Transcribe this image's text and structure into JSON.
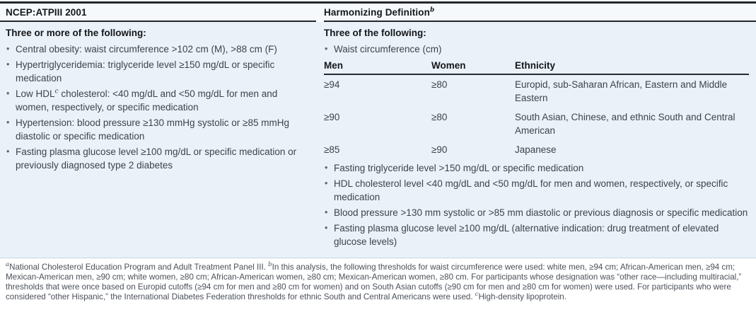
{
  "colors": {
    "rule_dark": "#23272f",
    "body_background": "#eaf1f8",
    "heading_text": "#14171b",
    "body_text": "#3e434a",
    "footnote_text": "#4a5058"
  },
  "bullet_glyph": "•",
  "table": {
    "left": {
      "header": "NCEP:ATPIII 2001",
      "intro": "Three or more of the following:",
      "bullets": [
        {
          "pre": "Central obesity: waist circumference >102 cm (M), >88 cm (F)",
          "sup": "",
          "post": ""
        },
        {
          "pre": "Hypertriglyceridemia: triglyceride level ≥150 mg/dL or specific medication",
          "sup": "",
          "post": ""
        },
        {
          "pre": "Low HDL",
          "sup": "c",
          "post": " cholesterol: <40 mg/dL and <50 mg/dL for men and women, respectively, or specific medication"
        },
        {
          "pre": "Hypertension: blood pressure ≥130 mmHg systolic or ≥85 mmHg diastolic or specific medication",
          "sup": "",
          "post": ""
        },
        {
          "pre": "Fasting plasma glucose level ≥100 mg/dL or specific medication or previously diagnosed type 2 diabetes",
          "sup": "",
          "post": ""
        }
      ]
    },
    "right": {
      "header": {
        "text": "Harmonizing Definition",
        "sup": "b"
      },
      "intro": "Three of the following:",
      "waist_bullet": "Waist circumference (cm)",
      "subtable": {
        "headers": [
          "Men",
          "Women",
          "Ethnicity"
        ],
        "rows": [
          [
            "≥94",
            "≥80",
            "Europid, sub-Saharan African, Eastern and Middle Eastern"
          ],
          [
            "≥90",
            "≥80",
            "South Asian, Chinese, and ethnic South and Central American"
          ],
          [
            "≥85",
            "≥90",
            "Japanese"
          ]
        ]
      },
      "bullets": [
        {
          "pre": "Fasting triglyceride level >150 mg/dL or specific medication",
          "sup": "",
          "post": ""
        },
        {
          "pre": "HDL cholesterol level <40 mg/dL and <50 mg/dL for men and women, respectively, or specific medication",
          "sup": "",
          "post": ""
        },
        {
          "pre": "Blood pressure >130 mm systolic or >85 mm diastolic or previous diagnosis or specific medication",
          "sup": "",
          "post": ""
        },
        {
          "pre": "Fasting plasma glucose level ≥100 mg/dL (alternative indication: drug treatment of elevated glucose levels)",
          "sup": "",
          "post": ""
        }
      ]
    }
  },
  "footnotes": [
    {
      "marker": "a",
      "text": "National Cholesterol Education Program and Adult Treatment Panel III.  "
    },
    {
      "marker": "b",
      "text": "In this analysis, the following thresholds for waist circumference were used: white men, ≥94 cm; African-American men, ≥94 cm; Mexican-American men, ≥90 cm; white women, ≥80 cm; African-American women, ≥80 cm; Mexican-American women, ≥80 cm. For participants whose designation was “other race—including multiracial,” thresholds that were once based on Europid cutoffs (≥94 cm for men and ≥80 cm for women) and on South Asian cutoffs (≥90 cm for men and ≥80 cm for women) were used. For participants who were considered “other Hispanic,” the International Diabetes Federation thresholds for ethnic South and Central Americans were used.  "
    },
    {
      "marker": "c",
      "text": "High-density lipoprotein."
    }
  ]
}
